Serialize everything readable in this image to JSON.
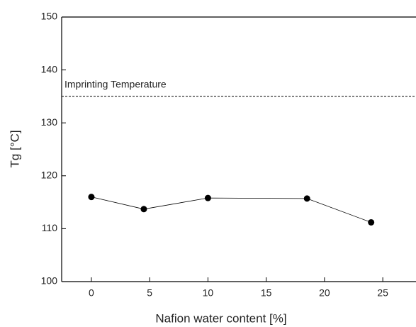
{
  "chart_data": {
    "type": "line",
    "x": [
      0,
      4.5,
      10,
      18.5,
      24
    ],
    "values": [
      116,
      113.7,
      115.8,
      115.7,
      111.2
    ],
    "color": "#000000",
    "xlabel": "Nafion water content [%]",
    "ylabel": "Tg [°C]",
    "xlim": [
      -2.55,
      27.85
    ],
    "xticks": [
      0,
      5,
      10,
      15,
      20,
      25
    ],
    "ylim": [
      100,
      150
    ],
    "yticks": [
      100,
      110,
      120,
      130,
      140,
      150
    ],
    "hline": {
      "value": 135,
      "label": "Imprinting Temperature",
      "style": "dashed"
    },
    "grid": false
  }
}
